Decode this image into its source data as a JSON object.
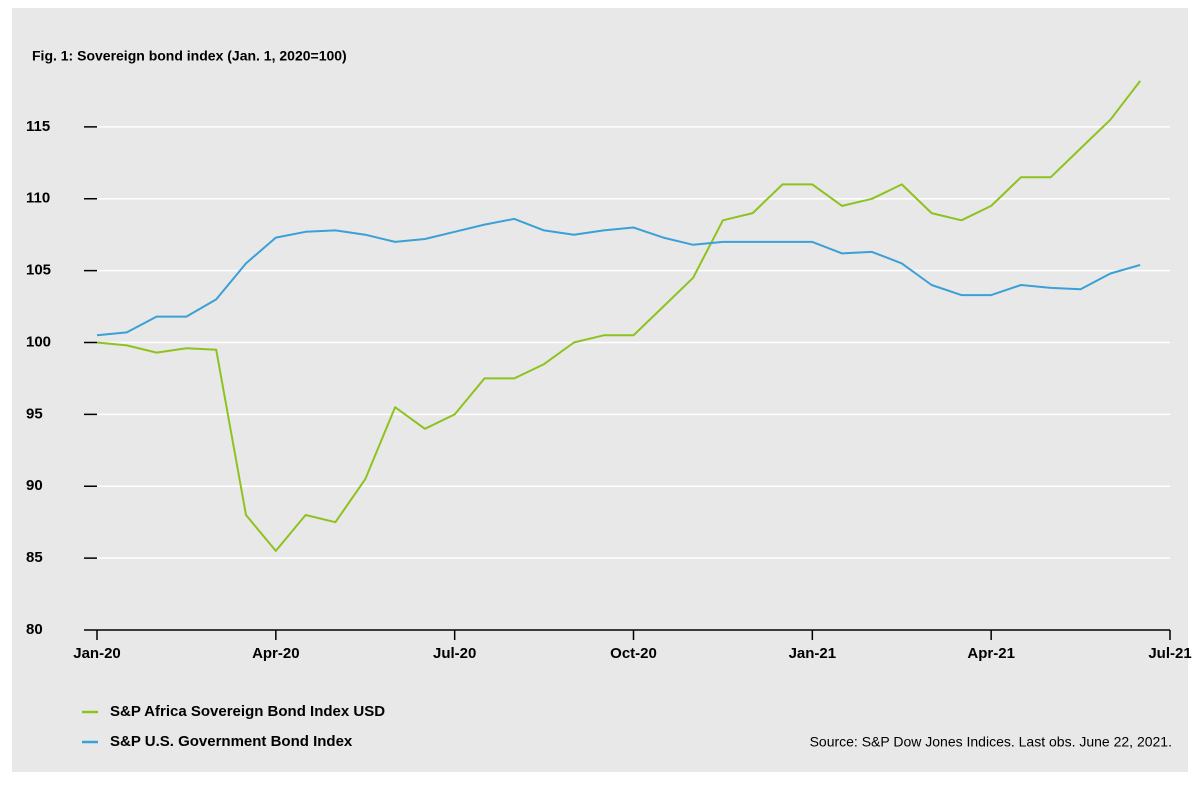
{
  "chart_data": {
    "type": "line",
    "title": "Fig. 1: Sovereign bond index (Jan. 1, 2020=100)",
    "source": "Source: S&P Dow Jones Indices. Last obs. June 22, 2021.",
    "categories": [
      "Jan-20",
      null,
      null,
      null,
      null,
      null,
      "Apr-20",
      null,
      null,
      null,
      null,
      null,
      "Jul-20",
      null,
      null,
      null,
      null,
      null,
      "Oct-20",
      null,
      null,
      null,
      null,
      null,
      "Jan-21",
      null,
      null,
      null,
      null,
      null,
      "Apr-21",
      null,
      null,
      null,
      null,
      null,
      "Jul-21"
    ],
    "series": [
      {
        "name": "S&P Africa Sovereign Bond Index USD",
        "color": "#8dc21f",
        "values": [
          100,
          99.8,
          99.3,
          99.6,
          99.5,
          88,
          85.5,
          88,
          87.5,
          90.5,
          95.5,
          94,
          95,
          97.5,
          97.5,
          98.5,
          100,
          100.5,
          100.5,
          102.5,
          104.5,
          108.5,
          109,
          111,
          111,
          109.5,
          110,
          111,
          109,
          108.5,
          109.5,
          111.5,
          111.5,
          113.5,
          115.5,
          118.2,
          null
        ]
      },
      {
        "name": "S&P U.S. Government Bond Index",
        "color": "#3aa0d6",
        "values": [
          100.5,
          100.7,
          101.8,
          101.8,
          103,
          105.5,
          107.3,
          107.7,
          107.8,
          107.5,
          107,
          107.2,
          107.7,
          108.2,
          108.6,
          107.8,
          107.5,
          107.8,
          108,
          107.3,
          106.8,
          107,
          107,
          107,
          107,
          106.2,
          106.3,
          105.5,
          104,
          103.3,
          103.3,
          104,
          103.8,
          103.7,
          104.8,
          105.4,
          null
        ]
      }
    ],
    "ylim": [
      80,
      120
    ],
    "yticks": [
      80,
      85,
      90,
      95,
      100,
      105,
      110,
      115
    ],
    "grid": true
  }
}
